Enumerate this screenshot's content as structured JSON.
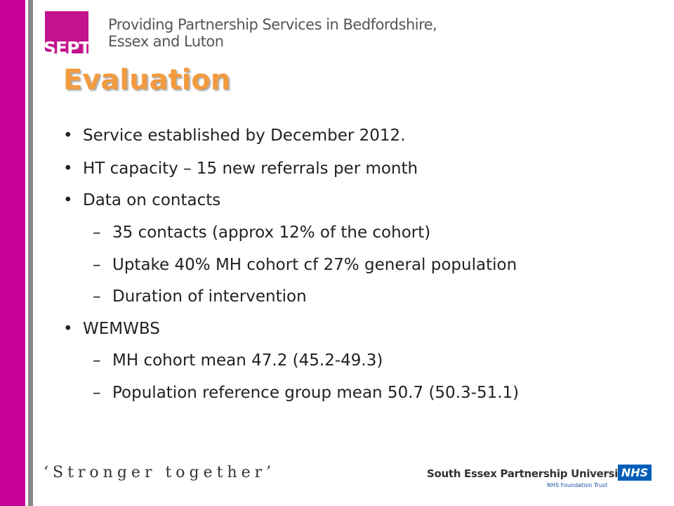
{
  "header": {
    "logo_text": "SEPT",
    "tagline_line1": "Providing Partnership Services in Bedfordshire,",
    "tagline_line2": "Essex and Luton"
  },
  "slide": {
    "title": "Evaluation",
    "bullets": [
      {
        "level": 1,
        "marker": "•",
        "text": "Service established by December 2012."
      },
      {
        "level": 1,
        "marker": "•",
        "text": "HT capacity – 15 new referrals per month"
      },
      {
        "level": 1,
        "marker": "•",
        "text": "Data on contacts"
      },
      {
        "level": 2,
        "marker": "–",
        "text": "35 contacts (approx 12% of the cohort)"
      },
      {
        "level": 2,
        "marker": "–",
        "text": "Uptake 40% MH cohort cf 27% general population"
      },
      {
        "level": 2,
        "marker": "–",
        "text": "Duration of intervention"
      },
      {
        "level": 1,
        "marker": "•",
        "text": "WEMWBS"
      },
      {
        "level": 2,
        "marker": "–",
        "text": "MH cohort mean 47.2 (45.2-49.3)"
      },
      {
        "level": 2,
        "marker": "–",
        "text": "Population reference group mean 50.7 (50.3-51.1)"
      }
    ]
  },
  "footer": {
    "slogan": "‘Stronger together’",
    "org_name": "South Essex Partnership University",
    "org_sub": "NHS Foundation Trust",
    "nhs_logo": "NHS"
  },
  "colors": {
    "accent_pink": "#c8009a",
    "title_orange": "#f29a3d",
    "nhs_blue": "#005eb8"
  }
}
